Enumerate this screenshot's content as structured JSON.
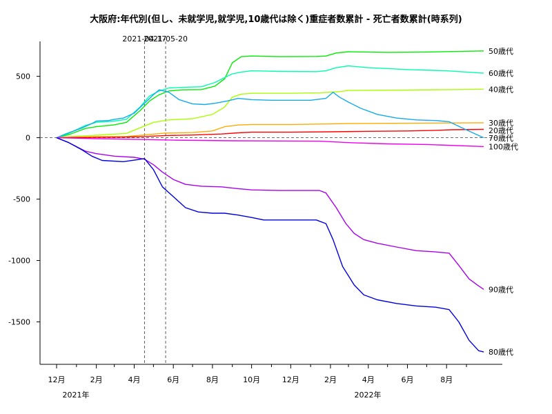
{
  "chart_data": {
    "type": "line",
    "title": "大阪府:年代別(但し、未就学児,就学児,10歳代は除く)重症者数累計 - 死亡者数累計(時系列)",
    "x_start": "2020-12-01",
    "x_end": "2022-09-30",
    "ylim": [
      -1850,
      790
    ],
    "y_ticks": [
      500,
      0,
      -500,
      -1000,
      -1500
    ],
    "y_tick_labels": [
      "500",
      "0",
      "-500",
      "-1000",
      "-1500"
    ],
    "x_ticks": [
      {
        "date": "2020-12-01",
        "label": "12月"
      },
      {
        "date": "2021-02-01",
        "label": "2月"
      },
      {
        "date": "2021-04-01",
        "label": "4月"
      },
      {
        "date": "2021-06-01",
        "label": "6月"
      },
      {
        "date": "2021-08-01",
        "label": "8月"
      },
      {
        "date": "2021-10-01",
        "label": "10月"
      },
      {
        "date": "2021-12-01",
        "label": "12月"
      },
      {
        "date": "2022-02-01",
        "label": "2月"
      },
      {
        "date": "2022-04-01",
        "label": "4月"
      },
      {
        "date": "2022-06-01",
        "label": "6月"
      },
      {
        "date": "2022-08-01",
        "label": "8月"
      }
    ],
    "x_minor_ticks": [
      "2021-01-01",
      "2021-03-01",
      "2021-05-01",
      "2021-07-01",
      "2021-09-01",
      "2021-11-01",
      "2022-01-01",
      "2022-03-01",
      "2022-05-01",
      "2022-07-01",
      "2022-09-01"
    ],
    "year_labels": [
      {
        "date": "2020-12-01",
        "label": "2021年"
      },
      {
        "date": "2022-03-01",
        "label": "2022年"
      }
    ],
    "vlines": [
      {
        "date": "2021-04-17",
        "label": "2021-04-17"
      },
      {
        "date": "2021-05-20",
        "label": "2021-05-20"
      }
    ],
    "grid": false,
    "legend": "inline-right",
    "series": [
      {
        "name": "50歳代",
        "color": "#00ee00",
        "points": [
          [
            "2020-12-01",
            0
          ],
          [
            "2020-12-20",
            25
          ],
          [
            "2021-01-15",
            75
          ],
          [
            "2021-02-01",
            90
          ],
          [
            "2021-03-01",
            105
          ],
          [
            "2021-03-20",
            125
          ],
          [
            "2021-04-10",
            220
          ],
          [
            "2021-04-25",
            300
          ],
          [
            "2021-05-10",
            350
          ],
          [
            "2021-05-25",
            380
          ],
          [
            "2021-06-15",
            390
          ],
          [
            "2021-07-15",
            392
          ],
          [
            "2021-08-05",
            420
          ],
          [
            "2021-08-20",
            480
          ],
          [
            "2021-09-01",
            610
          ],
          [
            "2021-09-15",
            660
          ],
          [
            "2021-10-01",
            665
          ],
          [
            "2021-11-15",
            660
          ],
          [
            "2022-01-10",
            662
          ],
          [
            "2022-01-25",
            665
          ],
          [
            "2022-02-10",
            690
          ],
          [
            "2022-03-01",
            700
          ],
          [
            "2022-05-01",
            695
          ],
          [
            "2022-07-01",
            698
          ],
          [
            "2022-09-28",
            707
          ]
        ]
      },
      {
        "name": "60歳代",
        "color": "#00ffaa",
        "points": [
          [
            "2020-12-01",
            0
          ],
          [
            "2020-12-20",
            35
          ],
          [
            "2021-01-15",
            100
          ],
          [
            "2021-02-01",
            125
          ],
          [
            "2021-03-01",
            135
          ],
          [
            "2021-03-20",
            150
          ],
          [
            "2021-04-10",
            250
          ],
          [
            "2021-04-25",
            340
          ],
          [
            "2021-05-10",
            380
          ],
          [
            "2021-05-25",
            405
          ],
          [
            "2021-06-15",
            410
          ],
          [
            "2021-07-15",
            415
          ],
          [
            "2021-08-05",
            450
          ],
          [
            "2021-08-20",
            490
          ],
          [
            "2021-09-01",
            520
          ],
          [
            "2021-09-15",
            535
          ],
          [
            "2021-10-01",
            545
          ],
          [
            "2021-11-15",
            540
          ],
          [
            "2022-01-10",
            538
          ],
          [
            "2022-01-25",
            545
          ],
          [
            "2022-02-10",
            570
          ],
          [
            "2022-03-01",
            585
          ],
          [
            "2022-04-01",
            570
          ],
          [
            "2022-06-01",
            555
          ],
          [
            "2022-08-01",
            545
          ],
          [
            "2022-09-28",
            525
          ]
        ]
      },
      {
        "name": "40歳代",
        "color": "#aaff00",
        "points": [
          [
            "2020-12-01",
            0
          ],
          [
            "2020-12-20",
            8
          ],
          [
            "2021-02-01",
            20
          ],
          [
            "2021-03-20",
            35
          ],
          [
            "2021-04-10",
            80
          ],
          [
            "2021-05-01",
            125
          ],
          [
            "2021-05-25",
            145
          ],
          [
            "2021-07-01",
            155
          ],
          [
            "2021-08-01",
            190
          ],
          [
            "2021-08-20",
            250
          ],
          [
            "2021-09-01",
            330
          ],
          [
            "2021-09-15",
            355
          ],
          [
            "2021-10-01",
            362
          ],
          [
            "2021-12-01",
            362
          ],
          [
            "2022-01-15",
            365
          ],
          [
            "2022-02-15",
            375
          ],
          [
            "2022-03-01",
            385
          ],
          [
            "2022-06-01",
            388
          ],
          [
            "2022-09-28",
            395
          ]
        ]
      },
      {
        "name": "30歳代",
        "color": "#ffaa00",
        "points": [
          [
            "2020-12-01",
            0
          ],
          [
            "2021-02-01",
            8
          ],
          [
            "2021-03-20",
            10
          ],
          [
            "2021-04-15",
            22
          ],
          [
            "2021-05-20",
            38
          ],
          [
            "2021-07-01",
            42
          ],
          [
            "2021-08-01",
            55
          ],
          [
            "2021-08-20",
            90
          ],
          [
            "2021-09-10",
            103
          ],
          [
            "2021-10-01",
            108
          ],
          [
            "2021-12-01",
            108
          ],
          [
            "2022-02-01",
            112
          ],
          [
            "2022-03-01",
            115
          ],
          [
            "2022-06-01",
            118
          ],
          [
            "2022-09-28",
            122
          ]
        ]
      },
      {
        "name": "20歳代",
        "color": "#ff0000",
        "points": [
          [
            "2020-12-01",
            0
          ],
          [
            "2021-03-15",
            5
          ],
          [
            "2021-04-20",
            10
          ],
          [
            "2021-05-20",
            18
          ],
          [
            "2021-07-01",
            22
          ],
          [
            "2021-08-15",
            30
          ],
          [
            "2021-09-10",
            40
          ],
          [
            "2021-10-01",
            45
          ],
          [
            "2021-12-01",
            45
          ],
          [
            "2022-02-01",
            48
          ],
          [
            "2022-04-01",
            52
          ],
          [
            "2022-06-01",
            55
          ],
          [
            "2022-07-15",
            60
          ],
          [
            "2022-08-10",
            65
          ],
          [
            "2022-09-28",
            68
          ]
        ]
      },
      {
        "name": "70歳代",
        "color": "#11aaee",
        "points": [
          [
            "2020-12-01",
            0
          ],
          [
            "2020-12-15",
            30
          ],
          [
            "2021-01-10",
            80
          ],
          [
            "2021-01-25",
            115
          ],
          [
            "2021-02-01",
            135
          ],
          [
            "2021-02-20",
            140
          ],
          [
            "2021-03-01",
            150
          ],
          [
            "2021-03-15",
            160
          ],
          [
            "2021-04-01",
            200
          ],
          [
            "2021-04-15",
            270
          ],
          [
            "2021-05-01",
            350
          ],
          [
            "2021-05-10",
            390
          ],
          [
            "2021-05-25",
            370
          ],
          [
            "2021-06-10",
            310
          ],
          [
            "2021-07-01",
            275
          ],
          [
            "2021-07-20",
            270
          ],
          [
            "2021-08-05",
            280
          ],
          [
            "2021-08-25",
            300
          ],
          [
            "2021-09-10",
            320
          ],
          [
            "2021-10-01",
            310
          ],
          [
            "2021-11-01",
            305
          ],
          [
            "2021-12-01",
            305
          ],
          [
            "2022-01-01",
            305
          ],
          [
            "2022-01-25",
            320
          ],
          [
            "2022-02-05",
            370
          ],
          [
            "2022-02-15",
            330
          ],
          [
            "2022-03-01",
            290
          ],
          [
            "2022-03-20",
            240
          ],
          [
            "2022-04-15",
            190
          ],
          [
            "2022-05-15",
            160
          ],
          [
            "2022-06-15",
            145
          ],
          [
            "2022-07-15",
            140
          ],
          [
            "2022-08-05",
            130
          ],
          [
            "2022-08-25",
            80
          ],
          [
            "2022-09-15",
            30
          ],
          [
            "2022-09-28",
            0
          ]
        ]
      },
      {
        "name": "100歳代",
        "color": "#ee00ee",
        "points": [
          [
            "2020-12-01",
            0
          ],
          [
            "2021-02-01",
            -8
          ],
          [
            "2021-04-17",
            -15
          ],
          [
            "2021-06-01",
            -20
          ],
          [
            "2021-09-01",
            -25
          ],
          [
            "2022-01-15",
            -28
          ],
          [
            "2022-03-01",
            -40
          ],
          [
            "2022-05-01",
            -50
          ],
          [
            "2022-07-01",
            -55
          ],
          [
            "2022-09-28",
            -72
          ]
        ]
      },
      {
        "name": "90歳代",
        "color": "#aa00ee",
        "points": [
          [
            "2020-12-01",
            0
          ],
          [
            "2020-12-20",
            -40
          ],
          [
            "2021-01-15",
            -110
          ],
          [
            "2021-02-01",
            -130
          ],
          [
            "2021-03-01",
            -150
          ],
          [
            "2021-04-01",
            -160
          ],
          [
            "2021-04-17",
            -175
          ],
          [
            "2021-05-01",
            -220
          ],
          [
            "2021-05-15",
            -280
          ],
          [
            "2021-06-01",
            -340
          ],
          [
            "2021-06-20",
            -380
          ],
          [
            "2021-07-15",
            -395
          ],
          [
            "2021-08-15",
            -400
          ],
          [
            "2021-09-10",
            -415
          ],
          [
            "2021-10-01",
            -425
          ],
          [
            "2021-11-15",
            -430
          ],
          [
            "2022-01-15",
            -430
          ],
          [
            "2022-01-25",
            -450
          ],
          [
            "2022-02-10",
            -570
          ],
          [
            "2022-02-25",
            -700
          ],
          [
            "2022-03-10",
            -780
          ],
          [
            "2022-03-25",
            -830
          ],
          [
            "2022-04-15",
            -860
          ],
          [
            "2022-05-15",
            -890
          ],
          [
            "2022-06-15",
            -920
          ],
          [
            "2022-07-15",
            -930
          ],
          [
            "2022-08-05",
            -940
          ],
          [
            "2022-08-20",
            -1040
          ],
          [
            "2022-09-05",
            -1150
          ],
          [
            "2022-09-18",
            -1200
          ],
          [
            "2022-09-28",
            -1235
          ]
        ]
      },
      {
        "name": "80歳代",
        "color": "#0000dd",
        "points": [
          [
            "2020-12-01",
            0
          ],
          [
            "2020-12-20",
            -40
          ],
          [
            "2021-01-10",
            -100
          ],
          [
            "2021-01-25",
            -150
          ],
          [
            "2021-02-10",
            -185
          ],
          [
            "2021-03-15",
            -195
          ],
          [
            "2021-04-05",
            -180
          ],
          [
            "2021-04-17",
            -170
          ],
          [
            "2021-05-01",
            -260
          ],
          [
            "2021-05-15",
            -400
          ],
          [
            "2021-06-01",
            -480
          ],
          [
            "2021-06-20",
            -570
          ],
          [
            "2021-07-10",
            -605
          ],
          [
            "2021-08-01",
            -615
          ],
          [
            "2021-08-20",
            -615
          ],
          [
            "2021-09-10",
            -630
          ],
          [
            "2021-10-01",
            -650
          ],
          [
            "2021-10-20",
            -670
          ],
          [
            "2021-11-15",
            -670
          ],
          [
            "2022-01-10",
            -670
          ],
          [
            "2022-01-25",
            -700
          ],
          [
            "2022-02-05",
            -830
          ],
          [
            "2022-02-20",
            -1050
          ],
          [
            "2022-03-10",
            -1200
          ],
          [
            "2022-03-25",
            -1280
          ],
          [
            "2022-04-15",
            -1320
          ],
          [
            "2022-05-15",
            -1350
          ],
          [
            "2022-06-15",
            -1370
          ],
          [
            "2022-07-15",
            -1380
          ],
          [
            "2022-08-05",
            -1400
          ],
          [
            "2022-08-20",
            -1500
          ],
          [
            "2022-09-05",
            -1650
          ],
          [
            "2022-09-20",
            -1735
          ],
          [
            "2022-09-28",
            -1745
          ]
        ]
      }
    ]
  }
}
